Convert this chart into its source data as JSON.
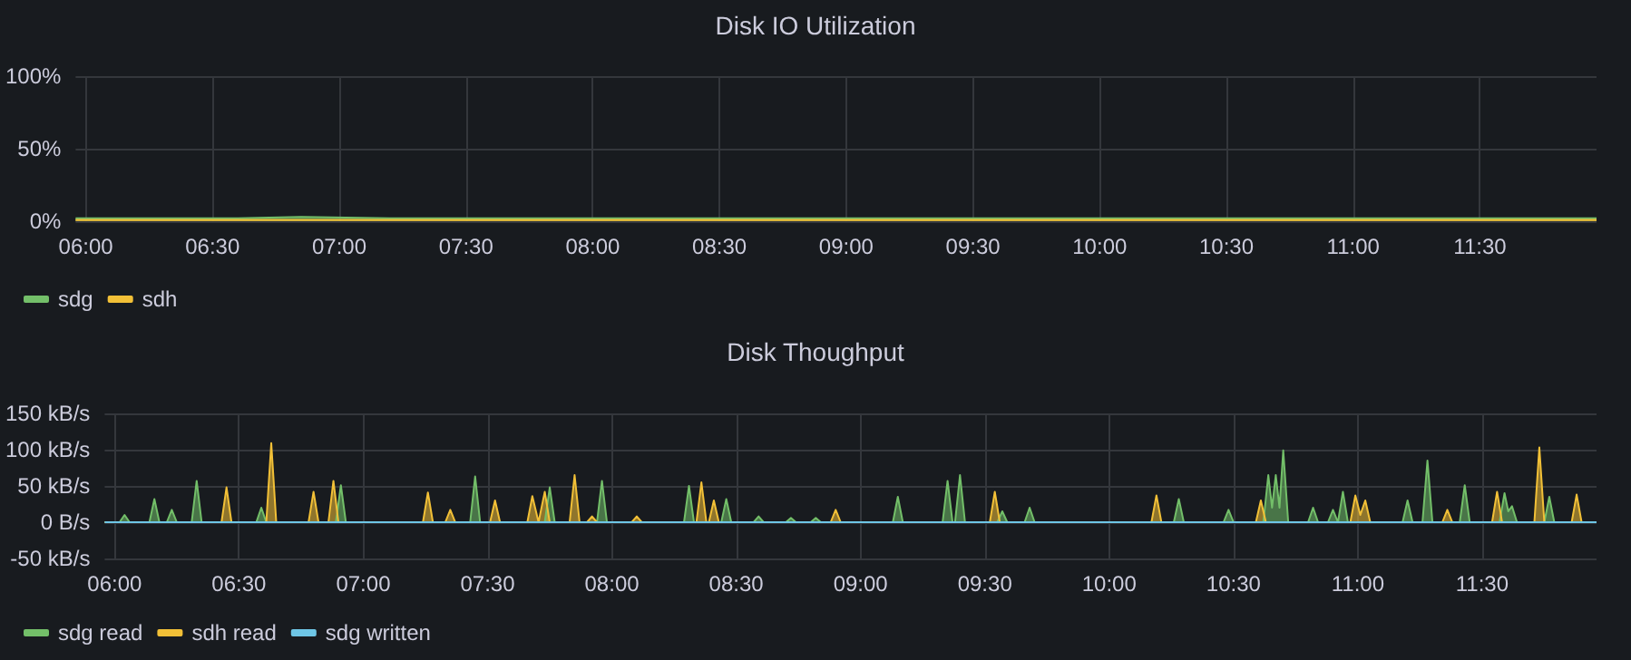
{
  "chart_data": [
    {
      "type": "area",
      "title": "Disk IO Utilization",
      "xlim": [
        5.96,
        11.96
      ],
      "ylim": [
        0,
        100
      ],
      "xticks": [
        {
          "value": 6,
          "label": "06:00"
        },
        {
          "value": 6.5,
          "label": "06:30"
        },
        {
          "value": 7,
          "label": "07:00"
        },
        {
          "value": 7.5,
          "label": "07:30"
        },
        {
          "value": 8,
          "label": "08:00"
        },
        {
          "value": 8.5,
          "label": "08:30"
        },
        {
          "value": 9,
          "label": "09:00"
        },
        {
          "value": 9.5,
          "label": "09:30"
        },
        {
          "value": 10,
          "label": "10:00"
        },
        {
          "value": 10.5,
          "label": "10:30"
        },
        {
          "value": 11,
          "label": "11:00"
        },
        {
          "value": 11.5,
          "label": "11:30"
        }
      ],
      "yticks": [
        {
          "value": 0,
          "label": "0%"
        },
        {
          "value": 50,
          "label": "50%"
        },
        {
          "value": 100,
          "label": "100%"
        }
      ],
      "grid": true,
      "legend": "bottom left",
      "series": [
        {
          "name": "sdg",
          "color": "#73bf69",
          "x": [
            5.96,
            6.3,
            6.6,
            6.85,
            7.2,
            7.6,
            8.0,
            8.4,
            8.85,
            9.2,
            9.5,
            9.9,
            10.3,
            10.7,
            11.1,
            11.5,
            11.96
          ],
          "values": [
            2,
            2,
            2,
            3,
            2,
            2,
            2,
            2,
            2,
            2,
            2,
            2,
            2,
            2,
            2,
            2,
            2
          ]
        },
        {
          "name": "sdh",
          "color": "#f2c037",
          "x": [
            5.96,
            11.96
          ],
          "values": [
            1,
            1
          ]
        }
      ]
    },
    {
      "type": "area",
      "title": "Disk Thoughput",
      "xlim": [
        5.96,
        11.96
      ],
      "ylim": [
        -50,
        150
      ],
      "xticks": [
        {
          "value": 6,
          "label": "06:00"
        },
        {
          "value": 6.5,
          "label": "06:30"
        },
        {
          "value": 7,
          "label": "07:00"
        },
        {
          "value": 7.5,
          "label": "07:30"
        },
        {
          "value": 8,
          "label": "08:00"
        },
        {
          "value": 8.5,
          "label": "08:30"
        },
        {
          "value": 9,
          "label": "09:00"
        },
        {
          "value": 9.5,
          "label": "09:30"
        },
        {
          "value": 10,
          "label": "10:00"
        },
        {
          "value": 10.5,
          "label": "10:30"
        },
        {
          "value": 11,
          "label": "11:00"
        },
        {
          "value": 11.5,
          "label": "11:30"
        }
      ],
      "yticks": [
        {
          "value": -50,
          "label": "-50 kB/s"
        },
        {
          "value": 0,
          "label": "0 B/s"
        },
        {
          "value": 50,
          "label": "50 kB/s"
        },
        {
          "value": 100,
          "label": "100 kB/s"
        },
        {
          "value": 150,
          "label": "150 kB/s"
        }
      ],
      "grid": true,
      "legend": "bottom left",
      "series": [
        {
          "name": "sdg read",
          "color": "#73bf69",
          "x": [
            5.96,
            6.02,
            6.04,
            6.06,
            6.14,
            6.16,
            6.18,
            6.21,
            6.23,
            6.25,
            6.31,
            6.33,
            6.35,
            6.57,
            6.59,
            6.61,
            6.89,
            6.91,
            6.93,
            7.43,
            7.45,
            7.47,
            7.73,
            7.75,
            7.77,
            7.94,
            7.96,
            7.98,
            8.29,
            8.31,
            8.33,
            8.44,
            8.46,
            8.48,
            8.57,
            8.59,
            8.61,
            8.7,
            8.72,
            8.74,
            8.8,
            8.82,
            8.84,
            9.13,
            9.15,
            9.17,
            9.33,
            9.35,
            9.37,
            9.38,
            9.4,
            9.42,
            9.55,
            9.57,
            9.59,
            9.66,
            9.68,
            9.7,
            10.26,
            10.28,
            10.3,
            10.46,
            10.48,
            10.5,
            10.62,
            10.64,
            10.655,
            10.67,
            10.685,
            10.7,
            10.72,
            10.8,
            10.82,
            10.84,
            10.88,
            10.9,
            10.92,
            10.94,
            10.96,
            11.18,
            11.2,
            11.22,
            11.26,
            11.28,
            11.3,
            11.41,
            11.43,
            11.45,
            11.57,
            11.59,
            11.605,
            11.62,
            11.64,
            11.75,
            11.77,
            11.79,
            11.96
          ],
          "values": [
            0,
            0,
            10,
            0,
            0,
            32,
            0,
            0,
            17,
            0,
            0,
            57,
            0,
            0,
            20,
            0,
            0,
            51,
            0,
            0,
            63,
            0,
            0,
            48,
            0,
            0,
            57,
            0,
            0,
            50,
            0,
            0,
            32,
            0,
            0,
            8,
            0,
            0,
            6,
            0,
            0,
            6,
            0,
            0,
            35,
            0,
            0,
            57,
            0,
            0,
            65,
            0,
            0,
            15,
            0,
            0,
            20,
            0,
            0,
            32,
            0,
            0,
            17,
            0,
            0,
            65,
            20,
            65,
            20,
            99,
            0,
            0,
            20,
            0,
            0,
            17,
            0,
            42,
            0,
            0,
            30,
            0,
            0,
            85,
            0,
            0,
            51,
            0,
            0,
            40,
            15,
            22,
            0,
            0,
            35,
            0,
            0
          ]
        },
        {
          "name": "sdh read",
          "color": "#f2c037",
          "x": [
            5.96,
            6.43,
            6.45,
            6.47,
            6.61,
            6.63,
            6.65,
            6.78,
            6.8,
            6.82,
            6.86,
            6.88,
            6.9,
            7.24,
            7.26,
            7.28,
            7.33,
            7.35,
            7.37,
            7.51,
            7.53,
            7.55,
            7.66,
            7.68,
            7.705,
            7.73,
            7.75,
            7.83,
            7.85,
            7.87,
            7.9,
            7.92,
            7.94,
            8.08,
            8.1,
            8.12,
            8.34,
            8.36,
            8.38,
            8.39,
            8.41,
            8.43,
            8.88,
            8.9,
            8.92,
            9.52,
            9.54,
            9.56,
            10.17,
            10.19,
            10.21,
            10.59,
            10.61,
            10.63,
            10.97,
            10.99,
            11.01,
            11.03,
            11.05,
            11.34,
            11.36,
            11.38,
            11.54,
            11.56,
            11.58,
            11.71,
            11.73,
            11.75,
            11.86,
            11.88,
            11.9,
            11.96
          ],
          "values": [
            0,
            0,
            48,
            0,
            0,
            109,
            0,
            0,
            42,
            0,
            0,
            57,
            0,
            0,
            41,
            0,
            0,
            17,
            0,
            0,
            30,
            0,
            0,
            36,
            0,
            42,
            0,
            0,
            65,
            0,
            0,
            8,
            0,
            0,
            8,
            0,
            0,
            55,
            0,
            0,
            30,
            0,
            0,
            17,
            0,
            0,
            42,
            0,
            0,
            37,
            0,
            0,
            30,
            0,
            0,
            37,
            10,
            30,
            0,
            0,
            17,
            0,
            0,
            42,
            0,
            0,
            103,
            0,
            0,
            38,
            0,
            0
          ]
        },
        {
          "name": "sdg written",
          "type": "line",
          "color": "#6ec6e6",
          "x": [
            5.96,
            11.96
          ],
          "values": [
            0,
            0
          ]
        }
      ]
    }
  ]
}
